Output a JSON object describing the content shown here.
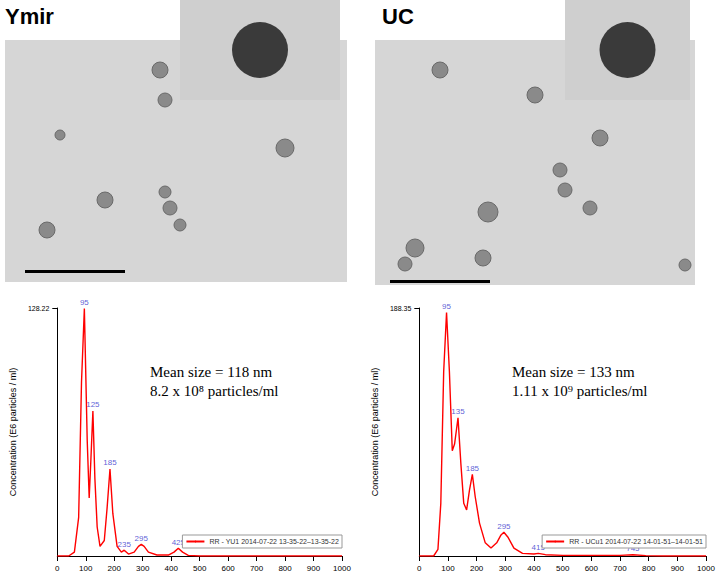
{
  "images": [
    {
      "title": "Ymir"
    },
    {
      "title": "UC"
    }
  ],
  "chart_data": [
    {
      "type": "line",
      "y_label": "Concentration (E6 particles / ml)",
      "xlim": [
        0,
        1000
      ],
      "xticks": [
        0,
        100,
        200,
        300,
        400,
        500,
        600,
        700,
        800,
        900,
        1000
      ],
      "ylim": [
        0,
        128.22
      ],
      "yticks": [
        128.22
      ],
      "grid": false,
      "legend": "lower right",
      "annotations": [
        "Mean size = 118 nm",
        "8.2 x 10⁸ particles/ml"
      ],
      "series": [
        {
          "name": "RR - YU1 2014-07-22 13-35-22–13-35-22",
          "color": "#ff0000",
          "x": [
            0,
            40,
            60,
            75,
            85,
            95,
            105,
            112,
            118,
            125,
            132,
            140,
            150,
            165,
            175,
            185,
            195,
            210,
            225,
            235,
            250,
            270,
            285,
            295,
            305,
            320,
            350,
            390,
            410,
            425,
            440,
            460,
            500,
            1000
          ],
          "values": [
            0,
            0,
            2,
            20,
            90,
            128,
            60,
            30,
            50,
            75,
            40,
            15,
            5,
            8,
            25,
            45,
            22,
            5,
            2,
            3,
            1,
            2,
            5,
            6,
            5,
            2,
            0.5,
            0.5,
            2,
            4,
            2,
            0.3,
            0,
            0
          ]
        }
      ],
      "peaks": {
        "color": "#3333cc",
        "x": [
          95,
          125,
          185,
          235,
          295,
          425
        ],
        "values": [
          128,
          75,
          45,
          3,
          6,
          4
        ]
      }
    },
    {
      "type": "line",
      "y_label": "Concentration (E6 particles / ml)",
      "xlim": [
        0,
        1000
      ],
      "xticks": [
        0,
        100,
        200,
        300,
        400,
        500,
        600,
        700,
        800,
        900,
        1000
      ],
      "ylim": [
        0,
        188.35
      ],
      "yticks": [
        188.35
      ],
      "grid": false,
      "legend": "lower right",
      "annotations": [
        "Mean size = 133 nm",
        "1.11 x 10⁹ particles/ml"
      ],
      "series": [
        {
          "name": "RR - UCu1 2014-07-22 14-01-51–14-01-51",
          "color": "#ff0000",
          "x": [
            0,
            50,
            65,
            75,
            85,
            95,
            105,
            115,
            123,
            135,
            145,
            155,
            165,
            175,
            185,
            195,
            210,
            230,
            250,
            270,
            285,
            295,
            310,
            330,
            360,
            400,
            415,
            440,
            500,
            700,
            745,
            790,
            850,
            1000
          ],
          "values": [
            0,
            0,
            5,
            40,
            140,
            185,
            140,
            80,
            85,
            105,
            70,
            40,
            35,
            50,
            62,
            45,
            25,
            10,
            6,
            10,
            16,
            18,
            14,
            6,
            2,
            1.5,
            2,
            1,
            0.5,
            0.5,
            1,
            0.3,
            0,
            0
          ]
        }
      ],
      "peaks": {
        "color": "#3333cc",
        "x": [
          95,
          135,
          185,
          295,
          415,
          745
        ],
        "values": [
          185,
          105,
          62,
          18,
          2,
          1
        ]
      }
    }
  ]
}
